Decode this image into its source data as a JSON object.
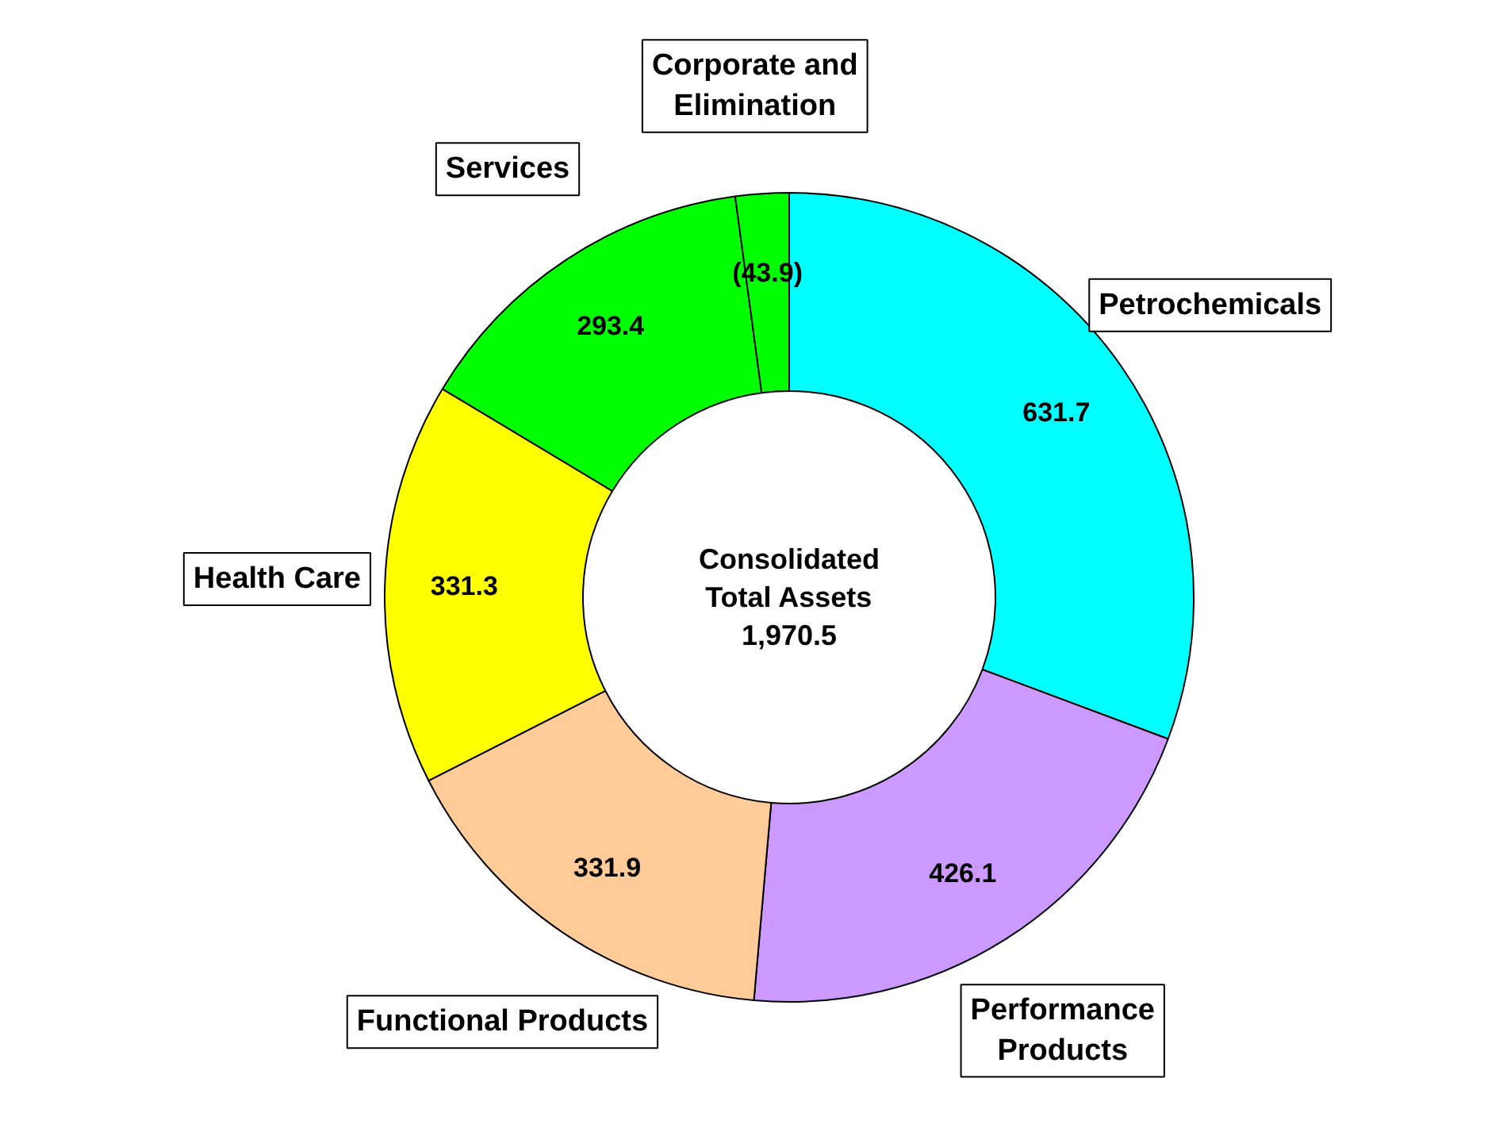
{
  "chart_data": {
    "type": "donut",
    "categories": [
      "Petrochemicals",
      "Performance\nProducts",
      "Functional Products",
      "Health Care",
      "Services",
      "Corporate and\nElimination"
    ],
    "values": [
      631.7,
      426.1,
      331.9,
      331.3,
      293.4,
      43.9
    ],
    "value_labels": [
      "631.7",
      "426.1",
      "331.9",
      "331.3",
      "293.4",
      "(43.9)"
    ],
    "colors": [
      "#00ffff",
      "#cc99ff",
      "#ffcc99",
      "#ffff00",
      "#00ff00",
      "#00ff00"
    ],
    "annotations": [
      "Consolidated\nTotal Assets\n1,970.5"
    ]
  }
}
